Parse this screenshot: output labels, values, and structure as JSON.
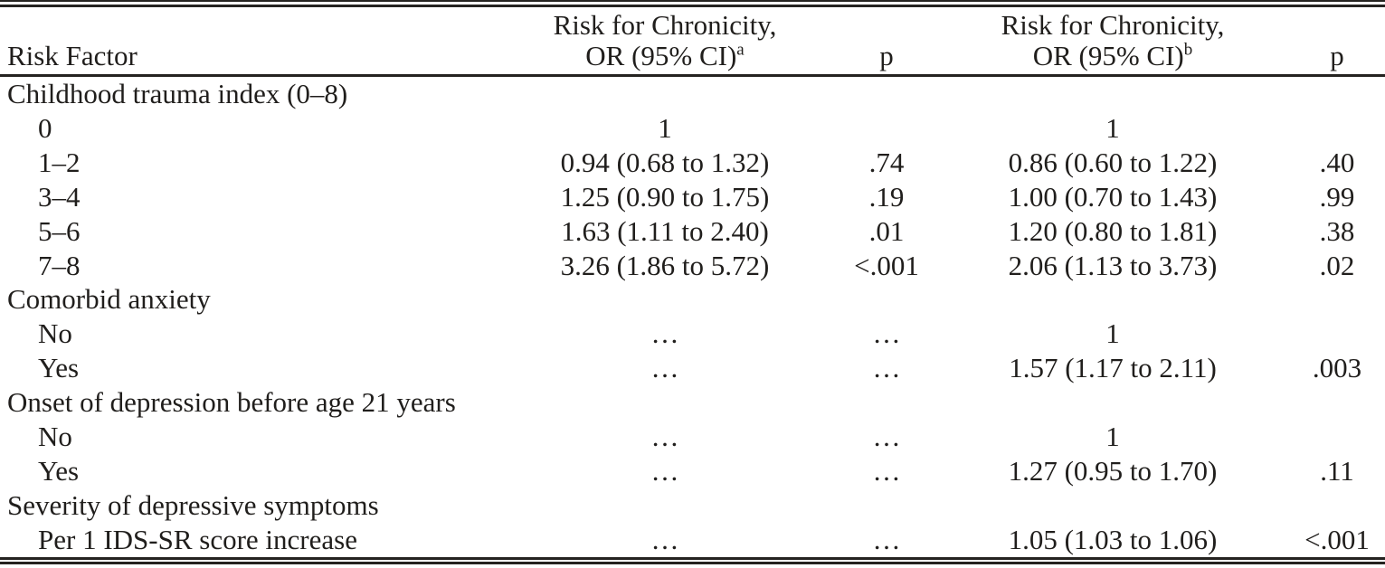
{
  "table": {
    "header": {
      "risk_factor": "Risk Factor",
      "or_a_line1": "Risk for Chronicity,",
      "or_a_line2": "OR (95% CI)",
      "or_a_sup": "a",
      "p_a": "p",
      "or_b_line1": "Risk for Chronicity,",
      "or_b_line2": "OR (95% CI)",
      "or_b_sup": "b",
      "p_b": "p"
    },
    "rows": [
      {
        "label": "Childhood trauma index (0–8)",
        "indent": false,
        "or_a": "",
        "p_a": "",
        "or_b": "",
        "p_b": ""
      },
      {
        "label": "0",
        "indent": true,
        "or_a": "1",
        "p_a": "",
        "or_b": "1",
        "p_b": ""
      },
      {
        "label": "1–2",
        "indent": true,
        "or_a": "0.94 (0.68 to 1.32)",
        "p_a": ".74",
        "or_b": "0.86 (0.60 to 1.22)",
        "p_b": ".40"
      },
      {
        "label": "3–4",
        "indent": true,
        "or_a": "1.25 (0.90 to 1.75)",
        "p_a": ".19",
        "or_b": "1.00 (0.70 to 1.43)",
        "p_b": ".99"
      },
      {
        "label": "5–6",
        "indent": true,
        "or_a": "1.63 (1.11 to 2.40)",
        "p_a": ".01",
        "or_b": "1.20 (0.80 to 1.81)",
        "p_b": ".38"
      },
      {
        "label": "7–8",
        "indent": true,
        "or_a": "3.26 (1.86 to 5.72)",
        "p_a": "<.001",
        "or_b": "2.06 (1.13 to 3.73)",
        "p_b": ".02"
      },
      {
        "label": "Comorbid anxiety",
        "indent": false,
        "or_a": "",
        "p_a": "",
        "or_b": "",
        "p_b": ""
      },
      {
        "label": "No",
        "indent": true,
        "or_a": "…",
        "p_a": "…",
        "or_b": "1",
        "p_b": ""
      },
      {
        "label": "Yes",
        "indent": true,
        "or_a": "…",
        "p_a": "…",
        "or_b": "1.57 (1.17 to 2.11)",
        "p_b": ".003"
      },
      {
        "label": "Onset of depression before age 21 years",
        "indent": false,
        "or_a": "",
        "p_a": "",
        "or_b": "",
        "p_b": ""
      },
      {
        "label": "No",
        "indent": true,
        "or_a": "…",
        "p_a": "…",
        "or_b": "1",
        "p_b": ""
      },
      {
        "label": "Yes",
        "indent": true,
        "or_a": "…",
        "p_a": "…",
        "or_b": "1.27 (0.95 to 1.70)",
        "p_b": ".11"
      },
      {
        "label": "Severity of depressive symptoms",
        "indent": false,
        "or_a": "",
        "p_a": "",
        "or_b": "",
        "p_b": ""
      },
      {
        "label": "Per 1 IDS-SR score increase",
        "indent": true,
        "or_a": "…",
        "p_a": "…",
        "or_b": "1.05 (1.03 to 1.06)",
        "p_b": "<.001"
      }
    ],
    "colors": {
      "text": "#201e1c",
      "rule": "#252320",
      "background": "#ffffff"
    }
  }
}
